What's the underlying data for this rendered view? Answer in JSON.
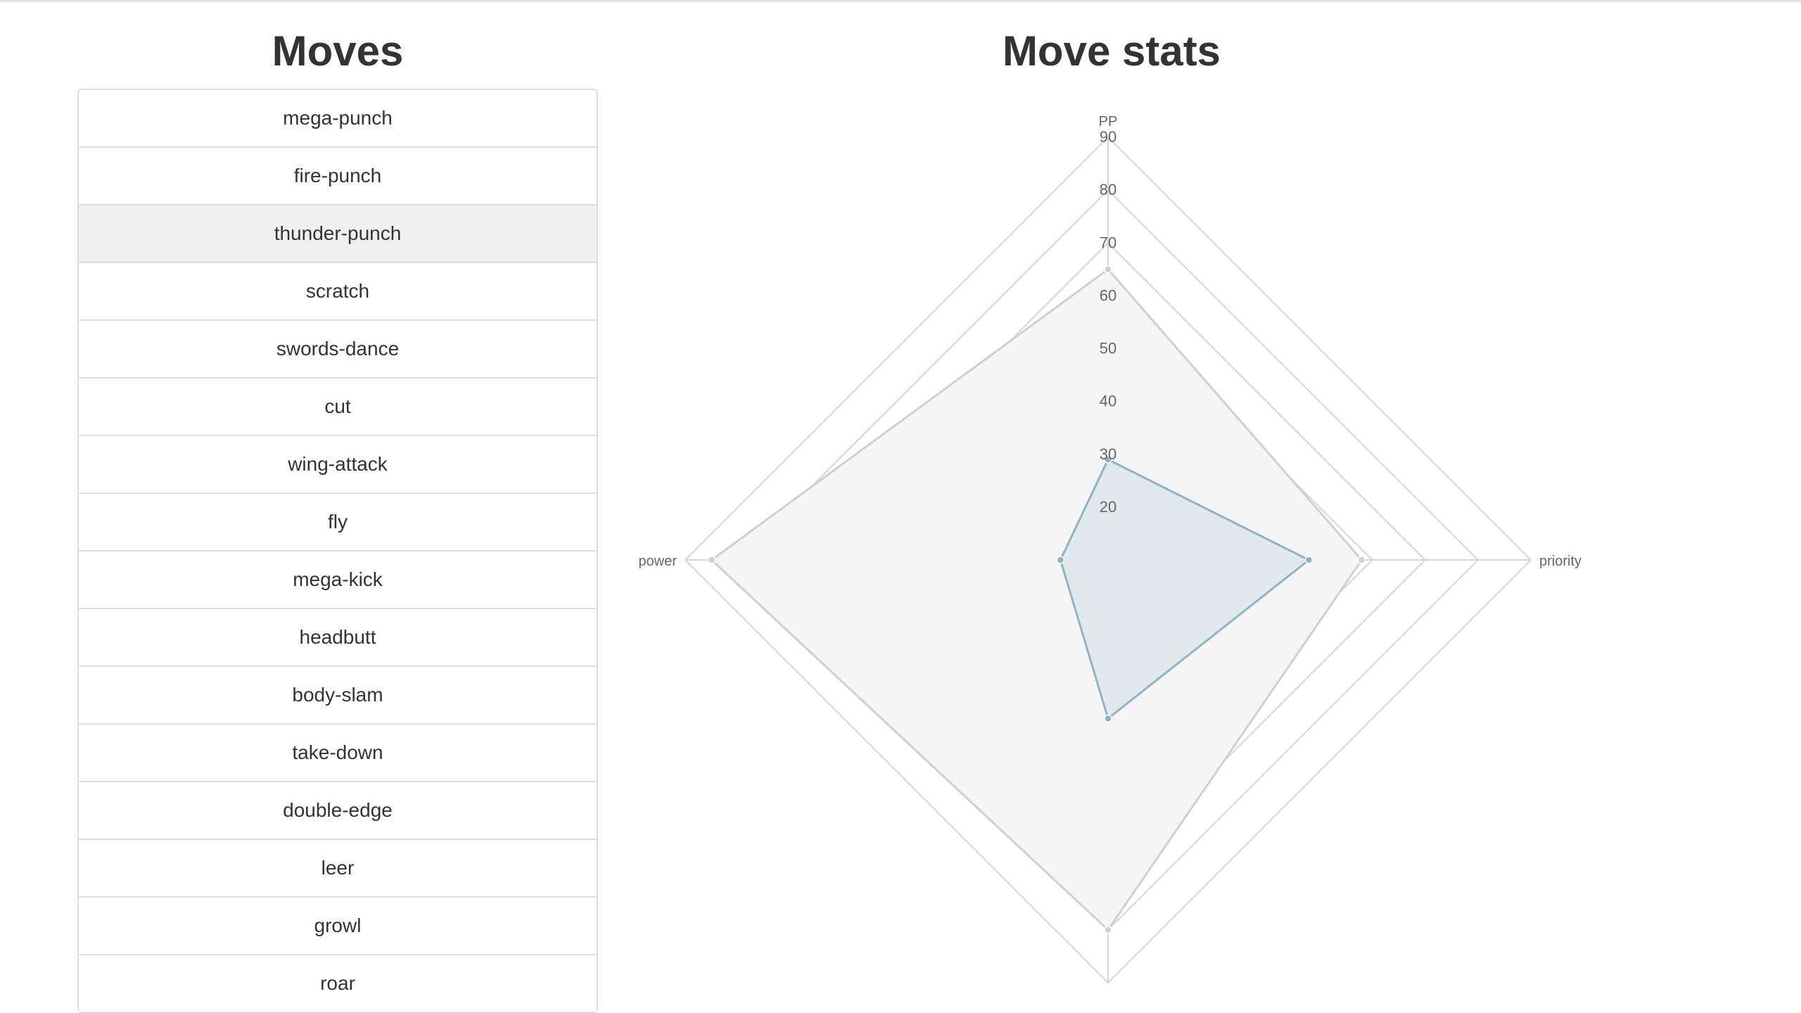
{
  "moves_panel": {
    "title": "Moves",
    "items": [
      {
        "label": "mega-punch",
        "active": false
      },
      {
        "label": "fire-punch",
        "active": false
      },
      {
        "label": "thunder-punch",
        "active": true
      },
      {
        "label": "scratch",
        "active": false
      },
      {
        "label": "swords-dance",
        "active": false
      },
      {
        "label": "cut",
        "active": false
      },
      {
        "label": "wing-attack",
        "active": false
      },
      {
        "label": "fly",
        "active": false
      },
      {
        "label": "mega-kick",
        "active": false
      },
      {
        "label": "headbutt",
        "active": false
      },
      {
        "label": "body-slam",
        "active": false
      },
      {
        "label": "take-down",
        "active": false
      },
      {
        "label": "double-edge",
        "active": false
      },
      {
        "label": "leer",
        "active": false
      },
      {
        "label": "growl",
        "active": false
      },
      {
        "label": "roar",
        "active": false
      }
    ]
  },
  "stats_panel": {
    "title": "Move stats"
  },
  "chart_data": {
    "type": "radar",
    "axes": [
      "PP",
      "priority",
      "",
      "power"
    ],
    "tick_labels": [
      "20",
      "30",
      "40",
      "50",
      "60",
      "70",
      "80",
      "90"
    ],
    "range": [
      10,
      90
    ],
    "grid": true,
    "series": [
      {
        "values": [
          65,
          58,
          80,
          85
        ],
        "color": "#d0d0d0",
        "fill": "#f5f5f5"
      },
      {
        "values": [
          29,
          48,
          40,
          19
        ],
        "color": "#8fb3c8",
        "fill": "rgba(151,187,205,0.2)"
      }
    ]
  }
}
